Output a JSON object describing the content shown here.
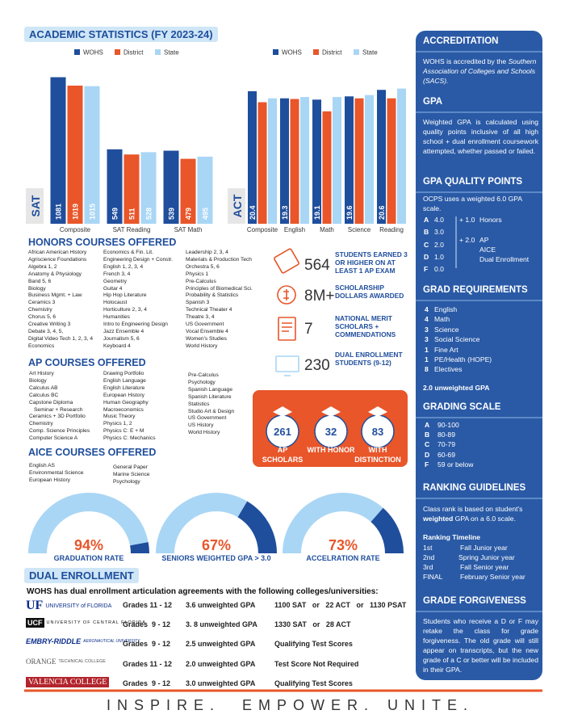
{
  "header": {
    "title": "ACADEMIC STATISTICS (FY 2023-24)"
  },
  "chart_data": [
    {
      "type": "bar",
      "ylabel": "SAT",
      "categories": [
        "Composite",
        "SAT Reading",
        "SAT Math"
      ],
      "series": [
        {
          "name": "WOHS",
          "color": "#1f4e9c",
          "values": [
            1081,
            549,
            539
          ],
          "show_labels": true
        },
        {
          "name": "District",
          "color": "#e8562a",
          "values": [
            1019,
            511,
            479
          ],
          "show_labels": true
        },
        {
          "name": "State",
          "color": "#a9d6f5",
          "values": [
            1015,
            528,
            495
          ],
          "show_labels": true
        }
      ],
      "ylim": [
        0,
        1150
      ]
    },
    {
      "type": "bar",
      "ylabel": "ACT",
      "categories": [
        "Composite",
        "English",
        "Math",
        "Science",
        "Reading"
      ],
      "series": [
        {
          "name": "WOHS",
          "color": "#1f4e9c",
          "values": [
            20.4,
            19.3,
            19.1,
            19.6,
            20.6
          ],
          "show_labels": true
        },
        {
          "name": "District",
          "color": "#e8562a",
          "values": [
            18.7,
            19.2,
            17.3,
            19.3,
            19.3
          ],
          "show_labels": false
        },
        {
          "name": "State",
          "color": "#a9d6f5",
          "values": [
            19.3,
            19.5,
            19.5,
            19.8,
            20.8
          ],
          "show_labels": false
        }
      ],
      "ylim": [
        0,
        22
      ]
    },
    {
      "type": "gauge",
      "categories": [
        "GRADUATION RATE",
        "SENIORS WEIGHTED GPA > 3.0",
        "ACCELRATION RATE"
      ],
      "values": [
        94,
        67,
        73
      ],
      "value_labels": [
        "94%",
        "67%",
        "73%"
      ],
      "ylim": [
        0,
        100
      ],
      "color": "#a9d6f5",
      "rest_color": "#1f4e9c",
      "label_color": "#e8562a"
    }
  ],
  "honors": {
    "title": "HONORS COURSES OFFERED",
    "columns": [
      [
        "African American History",
        "Agriscience Foundations",
        "Algebra 1, 2",
        "Anatomy & Physiology",
        "Band 5, 6",
        "Biology",
        "Business Mgmt. + Law",
        "Ceramics 3",
        "Chemistry",
        "Chorus 5, 6",
        "Creative Writing 3",
        "Debate 3, 4, 5,",
        "Digital Video Tech 1, 2, 3, 4",
        "Economics"
      ],
      [
        "Economics & Fin. Lit.",
        "Engineering Design + Constr.",
        "English 1, 2, 3, 4",
        "French 3, 4",
        "Geometry",
        "Guitar 4",
        "Hip Hop Literature",
        "Holocaust",
        "Horticulture 2, 3, 4",
        "Humanities",
        "Intro to Engineering Design",
        "Jazz Ensemble 4",
        "Journalism 5, 6",
        "Keyboard 4"
      ],
      [
        "Leadership 2, 3, 4",
        "Materials & Production Tech",
        "Orchestra 5, 6",
        "Physics 1",
        "Pre-Calculus",
        "Principles of Biomedical Sci.",
        "Probability & Statistics",
        "Spanish 3",
        "Technical Theater 4",
        "Theatre 3, 4",
        "US Government",
        "Vocal Ensemble 4",
        "Women's Studies",
        "World History"
      ]
    ]
  },
  "stats": [
    {
      "value": "564",
      "label": "STUDENTS EARNED 3 OR HIGHER ON AT LEAST 1 AP EXAM"
    },
    {
      "value": "8M+",
      "label": "SCHOLARSHIP DOLLARS AWARDED"
    },
    {
      "value": "7",
      "label": "NATIONAL MERIT SCHOLARS + COMMENDATIONS"
    },
    {
      "value": "230",
      "label": "DUAL ENROLLMENT STUDENTS (9-12)"
    }
  ],
  "ap": {
    "title": "AP COURSES OFFERED",
    "columns": [
      [
        "Art History",
        "Biology",
        "Calculus AB",
        "Calculus BC",
        "Capstone Diploma",
        "Seminar + Research",
        "Ceramics + 3D Portfolio",
        "Chemistry",
        "Comp. Science Principles",
        "Computer Science A"
      ],
      [
        "Drawing Portfolio",
        "English Language",
        "English Literature",
        "European History",
        "Human Geography",
        "Macroeconomics",
        "Music Theory",
        "Physics 1, 2",
        "Physics C: E + M",
        "Physics C: Mechanics"
      ],
      [
        "Pre-Calculus",
        "Psychology",
        "Spanish Language",
        "Spanish Literature",
        "Statistics",
        "Studio Art & Design",
        "US Government",
        "US History",
        "World History"
      ]
    ]
  },
  "ap_awards": [
    {
      "value": "261",
      "label": "AP SCHOLARS"
    },
    {
      "value": "32",
      "label": "WITH HONOR"
    },
    {
      "value": "83",
      "label": "WITH DISTINCTION"
    }
  ],
  "aice": {
    "title": "AICE COURSES OFFERED",
    "columns": [
      [
        "English AS",
        "Environmental Science",
        "European History"
      ],
      [
        "General Paper",
        "Marine Science",
        "Psychology"
      ]
    ]
  },
  "dual": {
    "title": "DUAL ENROLLMENT",
    "intro": "WOHS has dual enrollment articulation agreements with the following colleges/universities:",
    "rows": [
      {
        "logo": [
          "UF",
          "UNIVERSITY of FLORIDA"
        ],
        "grades": "Grades 11 - 12",
        "gpa": "3.6 unweighted GPA",
        "tests": "1100 SAT   or   22 ACT   or   1130 PSAT"
      },
      {
        "logo": [
          "UCF",
          "UNIVERSITY OF CENTRAL FLORIDA"
        ],
        "grades": "Grades  9 - 12",
        "gpa": "3. 8 unweighted GPA",
        "tests": "1330 SAT   or   28 ACT"
      },
      {
        "logo": [
          "EMBRY-RIDDLE",
          "AERONAUTICAL UNIVERSITY"
        ],
        "grades": "Grades  9 - 12",
        "gpa": "2.5 unweighted GPA",
        "tests": "Qualifying Test Scores"
      },
      {
        "logo": [
          "ORANGE",
          "TECHNICAL COLLEGE"
        ],
        "grades": "Grades 11 - 12",
        "gpa": "2.0 unweighted GPA",
        "tests": "Test Score Not Required"
      },
      {
        "logo": [
          "VALENCIA COLLEGE"
        ],
        "grades": "Grades  9 - 12",
        "gpa": "3.0 unweighted GPA",
        "tests": "Qualifying Test Scores"
      }
    ]
  },
  "motto": [
    "INSPIRE.",
    "EMPOWER.",
    "UNITE."
  ],
  "sidebar": {
    "accreditation": {
      "title": "ACCREDITATION",
      "text": "WOHS is accredited by the ",
      "italic": "Southern Association of Colleges and Schools (SACS)."
    },
    "gpa": {
      "title": "GPA",
      "text": "Weighted GPA is calculated using quality points inclusive of all high school + dual enrollment coursework attempted, whether passed or failed."
    },
    "quality": {
      "title": "GPA QUALITY POINTS",
      "text": "OCPS uses a weighted 6.0 GPA scale.",
      "grades": [
        [
          "A",
          "4.0"
        ],
        [
          "B",
          "3.0"
        ],
        [
          "C",
          "2.0"
        ],
        [
          "D",
          "1.0"
        ],
        [
          "F",
          "0.0"
        ]
      ],
      "bonus": [
        [
          "+ 1.0",
          "Honors"
        ],
        [
          "+ 2.0",
          "AP"
        ],
        [
          "AICE"
        ],
        [
          "Dual Enrollment"
        ]
      ]
    },
    "grad": {
      "title": "GRAD REQUIREMENTS",
      "items": [
        [
          "4",
          "English"
        ],
        [
          "4",
          "Math"
        ],
        [
          "3",
          "Science"
        ],
        [
          "3",
          "Social Science"
        ],
        [
          "1",
          "Fine Art"
        ],
        [
          "1",
          "PE/Health (HOPE)"
        ],
        [
          "8",
          "Electives"
        ]
      ],
      "note": "2.0 unweighted GPA"
    },
    "scale": {
      "title": "GRADING SCALE",
      "items": [
        [
          "A",
          "90-100"
        ],
        [
          "B",
          "80-89"
        ],
        [
          "C",
          "70-79"
        ],
        [
          "D",
          "60-69"
        ],
        [
          "F",
          "59 or below"
        ]
      ]
    },
    "ranking": {
      "title": "RANKING GUIDELINES",
      "text": "Class rank is based on student's ",
      "bold": "weighted",
      "text2": " GPA on a 6.0 scale.",
      "timeline_title": "Ranking Timeline",
      "timeline": [
        [
          "1st",
          "Fall Junior year"
        ],
        [
          "2nd",
          "Spring Junior year"
        ],
        [
          "3rd",
          "Fall Senior year"
        ],
        [
          "FINAL",
          "February Senior year"
        ]
      ]
    },
    "forgiveness": {
      "title": "GRADE FORGIVENESS",
      "text": "Students who receive a D or F may retake the class for grade forgiveness. The old grade will still appear on transcripts, but the new grade of a C or better will be included in their GPA."
    }
  }
}
